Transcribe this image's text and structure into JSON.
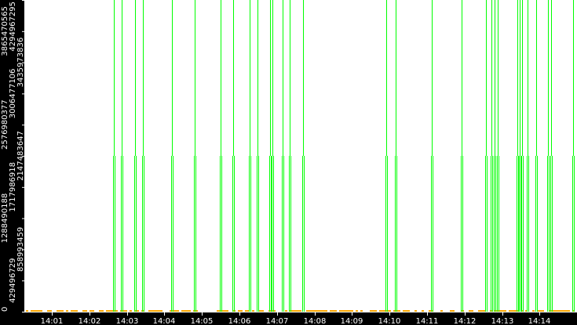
{
  "chart_data": {
    "type": "line",
    "title": "",
    "xlabel": "",
    "ylabel": "",
    "x_tick_labels": [
      "14:01",
      "14:02",
      "14:03",
      "14:04",
      "14:05",
      "14:06",
      "14:07",
      "14:08",
      "14:09",
      "14:10",
      "14:11",
      "14:12",
      "14:13",
      "14:14"
    ],
    "y_tick_labels": [
      "0",
      "429496729",
      "858993459",
      "1288490188",
      "1717986918",
      "2147483647",
      "2576980377",
      "3006477106",
      "3435973836",
      "3865470565",
      "4294967295"
    ],
    "ylim": [
      0,
      4294967295
    ],
    "xlim": [
      "14:00:00",
      "14:15:05"
    ],
    "grid": false,
    "events": [
      "14:02:39",
      "14:02:52",
      "14:03:13",
      "14:03:26",
      "14:04:12",
      "14:04:48",
      "14:05:30",
      "14:05:50",
      "14:06:16",
      "14:06:29",
      "14:06:49",
      "14:06:53",
      "14:07:09",
      "14:07:20",
      "14:07:42",
      "14:09:55",
      "14:10:10",
      "14:11:08",
      "14:11:55",
      "14:12:34",
      "14:12:43",
      "14:12:48",
      "14:12:53",
      "14:13:24",
      "14:13:28",
      "14:13:32",
      "14:13:41",
      "14:13:54",
      "14:14:13",
      "14:14:18",
      "14:14:53"
    ],
    "series": [
      {
        "color": "#00ff00",
        "upper_value": 4294967295,
        "lower_value": 2147483647
      },
      {
        "color": "#ffa500",
        "baseline_value": 0
      }
    ],
    "colors": {
      "background": "#ffffff",
      "axis_band": "#000000",
      "axis_text": "#ffffff",
      "event": "#00ff00",
      "baseline": "#ffa500"
    }
  }
}
